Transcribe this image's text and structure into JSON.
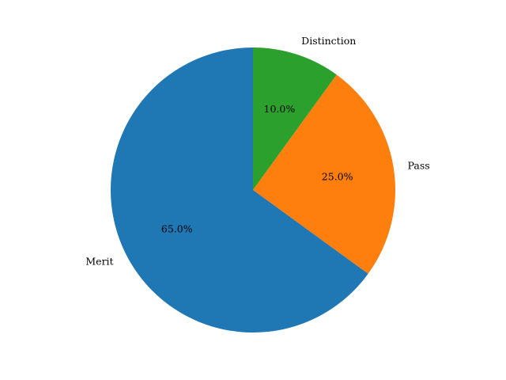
{
  "chart_data": {
    "type": "pie",
    "title": "",
    "labels": [
      "Distinction",
      "Pass",
      "Merit"
    ],
    "values": [
      10,
      25,
      65
    ],
    "percent_labels": [
      "10.0%",
      "25.0%",
      "65.0%"
    ],
    "colors": [
      "#2ca02c",
      "#ff7f0e",
      "#1f77b4"
    ],
    "start_angle_deg": 90,
    "direction": "clockwise",
    "legend": "none"
  }
}
